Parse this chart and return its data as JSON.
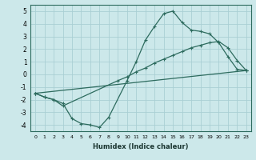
{
  "xlabel": "Humidex (Indice chaleur)",
  "bg_color": "#cce8ea",
  "grid_color": "#aacfd4",
  "line_color": "#2d6b5e",
  "xlim": [
    -0.5,
    23.5
  ],
  "ylim": [
    -4.5,
    5.5
  ],
  "xticks": [
    0,
    1,
    2,
    3,
    4,
    5,
    6,
    7,
    8,
    9,
    10,
    11,
    12,
    13,
    14,
    15,
    16,
    17,
    18,
    19,
    20,
    21,
    22,
    23
  ],
  "yticks": [
    -4,
    -3,
    -2,
    -1,
    0,
    1,
    2,
    3,
    4,
    5
  ],
  "line1_x": [
    0,
    1,
    2,
    3,
    4,
    5,
    6,
    7,
    8,
    10,
    11,
    12,
    13,
    14,
    15,
    16,
    17,
    18,
    19,
    20,
    21,
    22,
    23
  ],
  "line1_y": [
    -1.5,
    -1.8,
    -2.0,
    -2.3,
    -3.5,
    -3.9,
    -4.0,
    -4.2,
    -3.4,
    -0.5,
    1.0,
    2.7,
    3.8,
    4.8,
    5.0,
    4.1,
    3.5,
    3.4,
    3.2,
    2.5,
    1.4,
    0.4,
    0.3
  ],
  "line2_x": [
    0,
    1,
    2,
    3,
    9,
    10,
    11,
    12,
    13,
    14,
    15,
    16,
    17,
    18,
    19,
    20,
    21,
    22,
    23
  ],
  "line2_y": [
    -1.5,
    -1.8,
    -2.0,
    -2.5,
    -0.5,
    -0.2,
    0.2,
    0.5,
    0.9,
    1.2,
    1.5,
    1.8,
    2.1,
    2.3,
    2.5,
    2.6,
    2.1,
    1.1,
    0.3
  ],
  "line3_x": [
    0,
    23
  ],
  "line3_y": [
    -1.5,
    0.3
  ]
}
